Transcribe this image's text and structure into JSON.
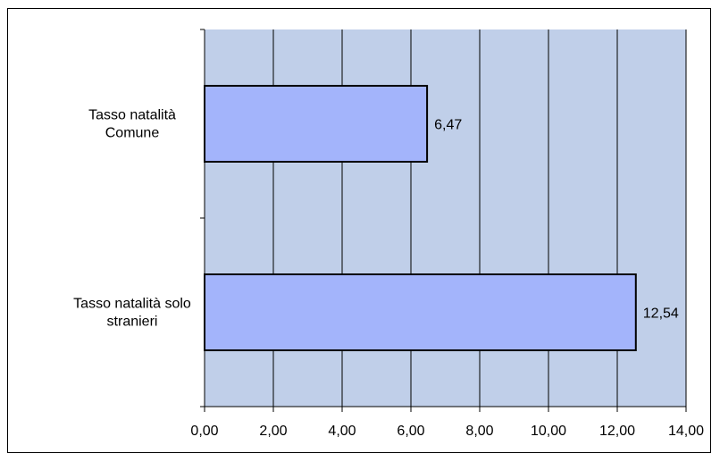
{
  "chart_data": {
    "type": "bar",
    "orientation": "horizontal",
    "categories": [
      [
        "Tasso natalità",
        "Comune"
      ],
      [
        "Tasso natalità solo",
        "stranieri"
      ]
    ],
    "values": [
      6.47,
      12.54
    ],
    "value_labels": [
      "6,47",
      "12,54"
    ],
    "xlim": [
      0,
      14
    ],
    "x_ticks": [
      0,
      2,
      4,
      6,
      8,
      10,
      12,
      14
    ],
    "x_tick_labels": [
      "0,00",
      "2,00",
      "4,00",
      "6,00",
      "8,00",
      "10,00",
      "12,00",
      "14,00"
    ],
    "title": "",
    "xlabel": "",
    "ylabel": "",
    "grid": true,
    "legend": "none",
    "colors": {
      "plot_background": "#c0cfe9",
      "bar_fill": "#a3b4fb",
      "bar_stroke": "#000000",
      "gridline": "#000000",
      "frame": "#000000"
    }
  }
}
